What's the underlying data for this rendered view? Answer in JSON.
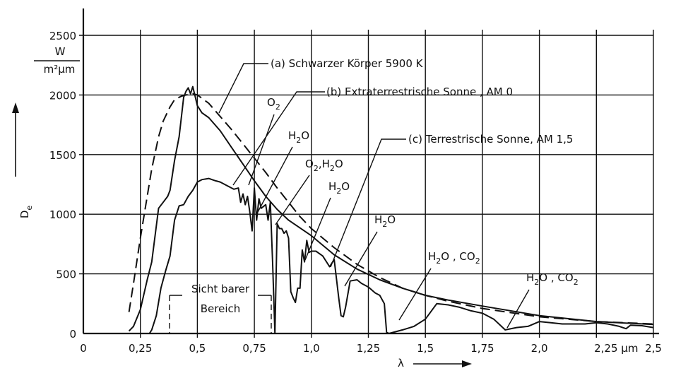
{
  "chart_data": {
    "type": "line",
    "xlabel": "λ",
    "ylabel": "D",
    "ylabel_sub": "e",
    "yunit_numerator": "W",
    "yunit_denominator": "m²µm",
    "xlim": [
      0,
      2.5
    ],
    "ylim": [
      0,
      2500
    ],
    "x_ticks": [
      {
        "value": 0,
        "label": "0"
      },
      {
        "value": 0.25,
        "label": "0,25"
      },
      {
        "value": 0.5,
        "label": "0,5"
      },
      {
        "value": 0.75,
        "label": "0,75"
      },
      {
        "value": 1.0,
        "label": "1,0"
      },
      {
        "value": 1.25,
        "label": "1,25"
      },
      {
        "value": 1.5,
        "label": "1,5"
      },
      {
        "value": 1.75,
        "label": "1,75"
      },
      {
        "value": 2.0,
        "label": "2,0"
      },
      {
        "value": 2.25,
        "label": "2,25 µm"
      },
      {
        "value": 2.5,
        "label": "2,5"
      }
    ],
    "y_ticks": [
      {
        "value": 0,
        "label": "0"
      },
      {
        "value": 500,
        "label": "500"
      },
      {
        "value": 1000,
        "label": "1000"
      },
      {
        "value": 1500,
        "label": "1500"
      },
      {
        "value": 2000,
        "label": "2000"
      },
      {
        "value": 2500,
        "label": "2500"
      }
    ],
    "grid": true,
    "series": [
      {
        "name": "(a) Schwarzer Körper 5900 K",
        "style": "dashed",
        "x": [
          0.2,
          0.22,
          0.25,
          0.28,
          0.3,
          0.33,
          0.35,
          0.38,
          0.4,
          0.43,
          0.45,
          0.48,
          0.5,
          0.55,
          0.6,
          0.65,
          0.7,
          0.75,
          0.8,
          0.85,
          0.9,
          0.95,
          1.0,
          1.1,
          1.2,
          1.3,
          1.4,
          1.5,
          1.6,
          1.75,
          2.0,
          2.25,
          2.5
        ],
        "y": [
          180,
          420,
          800,
          1150,
          1380,
          1650,
          1780,
          1900,
          1960,
          1990,
          2000,
          2010,
          2000,
          1930,
          1820,
          1710,
          1590,
          1470,
          1350,
          1220,
          1100,
          980,
          880,
          720,
          580,
          470,
          380,
          320,
          270,
          210,
          140,
          100,
          80
        ]
      },
      {
        "name": "(b) Extraterrestrische Sonne, AM 0",
        "style": "solid",
        "x": [
          0.2,
          0.22,
          0.25,
          0.28,
          0.3,
          0.33,
          0.35,
          0.37,
          0.38,
          0.4,
          0.42,
          0.44,
          0.45,
          0.46,
          0.47,
          0.48,
          0.49,
          0.5,
          0.52,
          0.55,
          0.6,
          0.65,
          0.7,
          0.75,
          0.8,
          0.85,
          0.9,
          1.0,
          1.1,
          1.2,
          1.3,
          1.4,
          1.5,
          1.6,
          1.75,
          2.0,
          2.25,
          2.5
        ],
        "y": [
          20,
          60,
          200,
          450,
          600,
          1050,
          1100,
          1150,
          1200,
          1450,
          1650,
          1980,
          2030,
          2060,
          2010,
          2070,
          1990,
          1910,
          1850,
          1810,
          1700,
          1560,
          1420,
          1280,
          1150,
          1040,
          950,
          820,
          660,
          540,
          450,
          380,
          320,
          280,
          230,
          150,
          100,
          75
        ]
      },
      {
        "name": "(c) Terrestrische Sonne, AM 1,5",
        "style": "solid",
        "x": [
          0.29,
          0.3,
          0.32,
          0.34,
          0.36,
          0.38,
          0.4,
          0.42,
          0.44,
          0.46,
          0.48,
          0.5,
          0.52,
          0.55,
          0.58,
          0.6,
          0.63,
          0.66,
          0.68,
          0.69,
          0.7,
          0.71,
          0.72,
          0.73,
          0.74,
          0.75,
          0.76,
          0.77,
          0.78,
          0.8,
          0.81,
          0.82,
          0.83,
          0.84,
          0.85,
          0.86,
          0.87,
          0.88,
          0.89,
          0.9,
          0.91,
          0.92,
          0.93,
          0.94,
          0.95,
          0.96,
          0.97,
          0.98,
          0.99,
          1.0,
          1.02,
          1.05,
          1.08,
          1.1,
          1.12,
          1.13,
          1.14,
          1.15,
          1.17,
          1.2,
          1.22,
          1.25,
          1.28,
          1.3,
          1.32,
          1.33,
          1.34,
          1.4,
          1.45,
          1.5,
          1.55,
          1.6,
          1.65,
          1.7,
          1.75,
          1.8,
          1.85,
          1.9,
          1.95,
          2.0,
          2.05,
          2.1,
          2.15,
          2.2,
          2.25,
          2.3,
          2.35,
          2.38,
          2.4,
          2.45,
          2.5
        ],
        "y": [
          0,
          30,
          150,
          380,
          520,
          650,
          950,
          1070,
          1080,
          1150,
          1200,
          1270,
          1290,
          1300,
          1280,
          1270,
          1240,
          1210,
          1220,
          1100,
          1170,
          1080,
          1150,
          1020,
          860,
          1220,
          950,
          1130,
          1050,
          1080,
          950,
          1100,
          600,
          0,
          920,
          880,
          880,
          840,
          860,
          800,
          350,
          300,
          260,
          380,
          380,
          700,
          600,
          780,
          680,
          690,
          690,
          650,
          560,
          620,
          300,
          150,
          140,
          220,
          440,
          450,
          420,
          390,
          340,
          320,
          250,
          10,
          0,
          30,
          60,
          120,
          250,
          240,
          220,
          190,
          170,
          120,
          30,
          50,
          60,
          100,
          90,
          80,
          80,
          80,
          90,
          80,
          60,
          40,
          70,
          65,
          50
        ]
      }
    ],
    "annotations": [
      {
        "id": "a",
        "text": "(a) Schwarzer Körper 5900 K"
      },
      {
        "id": "b",
        "text": "(b) Extraterrestrische Sonne , AM 0"
      },
      {
        "id": "c",
        "text": "(c) Terrestrische Sonne, AM 1,5"
      },
      {
        "id": "o2",
        "text": "O",
        "sub": "2"
      },
      {
        "id": "h2o1",
        "text": "H",
        "sub": "2",
        "tail": "O"
      },
      {
        "id": "o2h2o",
        "text": "O",
        "sub": "2",
        "tail": ",H",
        "sub2": "2",
        "tail2": "O"
      },
      {
        "id": "h2o2",
        "text": "H",
        "sub": "2",
        "tail": "O"
      },
      {
        "id": "h2o3",
        "text": "H",
        "sub": "2",
        "tail": "O"
      },
      {
        "id": "h2oco2a",
        "text": "H",
        "sub": "2",
        "tail": "O , CO",
        "sub2": "2",
        "tail2": ""
      },
      {
        "id": "h2oco2b",
        "text": "H",
        "sub": "2",
        "tail": "O , CO",
        "sub2": "2",
        "tail2": ""
      }
    ],
    "visible_range_label": [
      "Sicht barer",
      "Bereich"
    ]
  }
}
